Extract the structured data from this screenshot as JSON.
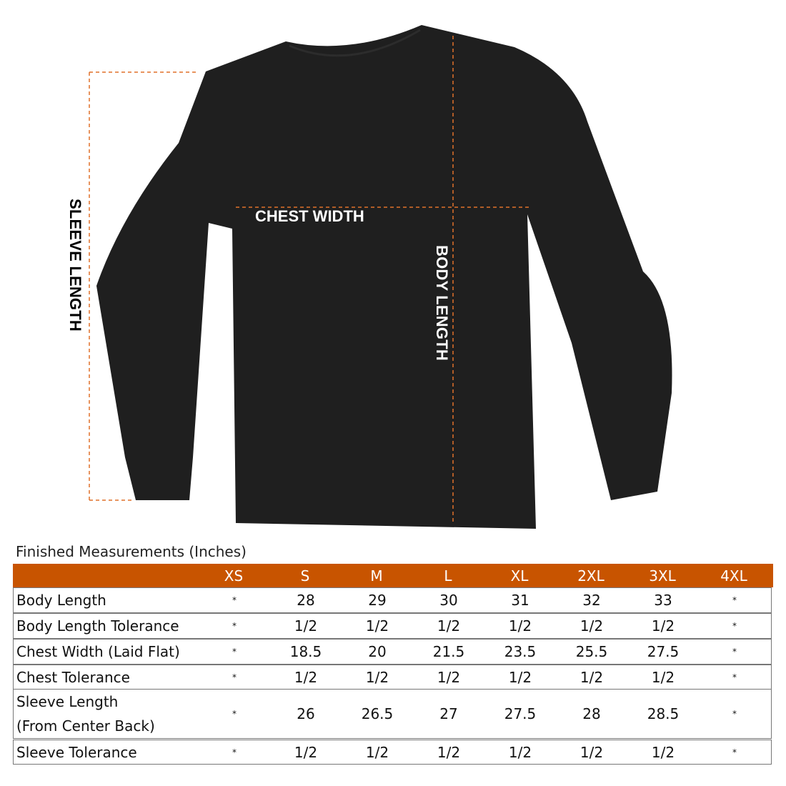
{
  "labels": {
    "sleeve_length": "SLEEVE LENGTH",
    "chest_width": "CHEST WIDTH",
    "body_length": "BODY LENGTH"
  },
  "colors": {
    "header": "#c85400",
    "dash": "#e0702a",
    "shirt": "#1f1f1f"
  },
  "table": {
    "title": "Finished Measurements (Inches)",
    "sizes": [
      "XS",
      "S",
      "M",
      "L",
      "XL",
      "2XL",
      "3XL",
      "4XL"
    ],
    "rows": [
      {
        "label": "Body Length",
        "values": [
          "*",
          "28",
          "29",
          "30",
          "31",
          "32",
          "33",
          "*"
        ]
      },
      {
        "label": "Body Length Tolerance",
        "values": [
          "*",
          "1/2",
          "1/2",
          "1/2",
          "1/2",
          "1/2",
          "1/2",
          "*"
        ]
      },
      {
        "label": "Chest Width (Laid Flat)",
        "values": [
          "*",
          "18.5",
          "20",
          "21.5",
          "23.5",
          "25.5",
          "27.5",
          "*"
        ]
      },
      {
        "label": "Chest Tolerance",
        "values": [
          "*",
          "1/2",
          "1/2",
          "1/2",
          "1/2",
          "1/2",
          "1/2",
          "*"
        ]
      },
      {
        "label": "Sleeve Length",
        "label2": "(From Center Back)",
        "values": [
          "*",
          "26",
          "26.5",
          "27",
          "27.5",
          "28",
          "28.5",
          "*"
        ]
      },
      {
        "label": "Sleeve Tolerance",
        "values": [
          "*",
          "1/2",
          "1/2",
          "1/2",
          "1/2",
          "1/2",
          "1/2",
          "*"
        ]
      }
    ]
  }
}
